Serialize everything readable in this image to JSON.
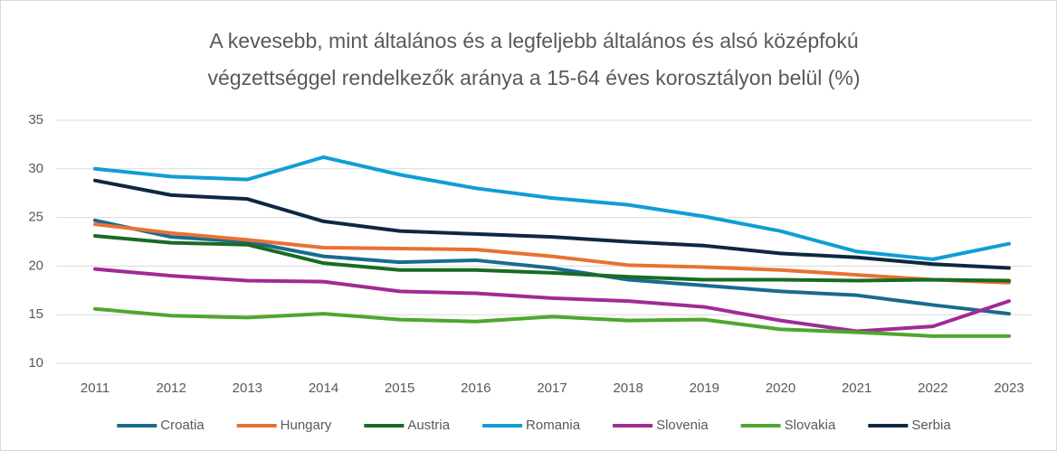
{
  "chart_data": {
    "type": "line",
    "title": [
      "A kevesebb, mint általános és a legfeljebb általános és alsó középfokú",
      "végzettséggel rendelkezők aránya a 15-64 éves korosztályon belül  (%)"
    ],
    "categories": [
      "2011",
      "2012",
      "2013",
      "2014",
      "2015",
      "2016",
      "2017",
      "2018",
      "2019",
      "2020",
      "2021",
      "2022",
      "2023"
    ],
    "ylim": [
      10,
      35
    ],
    "yticks": [
      10,
      15,
      20,
      25,
      30,
      35
    ],
    "grid": true,
    "legend": "bottom",
    "series": [
      {
        "name": "Croatia",
        "color": "#196B8F",
        "values": [
          24.7,
          23.0,
          22.5,
          21.0,
          20.4,
          20.6,
          19.8,
          18.6,
          18.0,
          17.4,
          17.0,
          16.0,
          15.1
        ]
      },
      {
        "name": "Hungary",
        "color": "#E97132",
        "values": [
          24.3,
          23.4,
          22.7,
          21.9,
          21.8,
          21.7,
          21.0,
          20.1,
          19.9,
          19.6,
          19.1,
          18.6,
          18.3
        ]
      },
      {
        "name": "Austria",
        "color": "#196B24",
        "values": [
          23.1,
          22.4,
          22.2,
          20.3,
          19.6,
          19.6,
          19.3,
          18.9,
          18.6,
          18.6,
          18.5,
          18.6,
          18.5
        ]
      },
      {
        "name": "Romania",
        "color": "#0F9ED5",
        "values": [
          30.0,
          29.2,
          28.9,
          31.2,
          29.4,
          28.0,
          27.0,
          26.3,
          25.1,
          23.6,
          21.5,
          20.7,
          22.3
        ]
      },
      {
        "name": "Slovenia",
        "color": "#A02B93",
        "values": [
          19.7,
          19.0,
          18.5,
          18.4,
          17.4,
          17.2,
          16.7,
          16.4,
          15.8,
          14.4,
          13.3,
          13.8,
          16.4
        ]
      },
      {
        "name": "Slovakia",
        "color": "#4EA72E",
        "values": [
          15.6,
          14.9,
          14.7,
          15.1,
          14.5,
          14.3,
          14.8,
          14.4,
          14.5,
          13.5,
          13.2,
          12.8,
          12.8
        ]
      },
      {
        "name": "Serbia",
        "color": "#0E2841",
        "values": [
          28.8,
          27.3,
          26.9,
          24.6,
          23.6,
          23.3,
          23.0,
          22.5,
          22.1,
          21.3,
          20.9,
          20.2,
          19.8
        ]
      }
    ]
  }
}
